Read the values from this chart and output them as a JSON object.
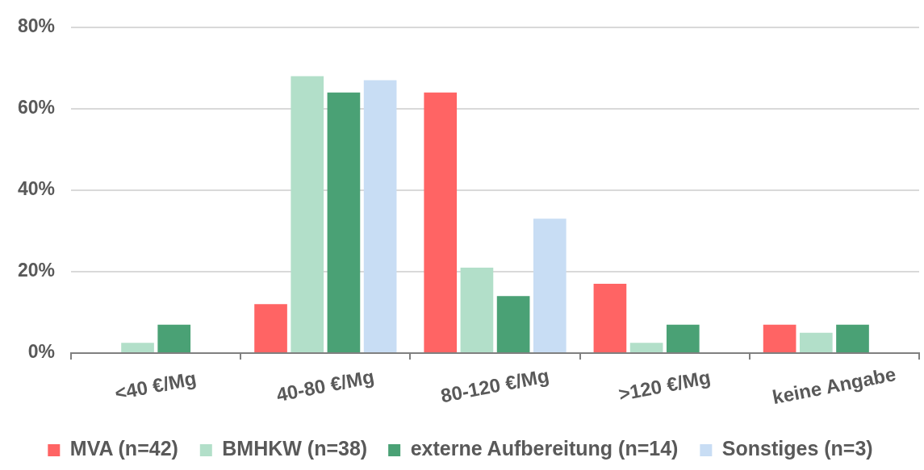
{
  "chart_data": {
    "type": "bar",
    "categories": [
      "<40 €/Mg",
      "40-80 €/Mg",
      "80-120 €/Mg",
      ">120 €/Mg",
      "keine Angabe"
    ],
    "series": [
      {
        "name": "MVA (n=42)",
        "color": "#ff6464",
        "values": [
          0,
          12,
          64,
          17,
          7
        ]
      },
      {
        "name": "BMHKW (n=38)",
        "color": "#b2dfc9",
        "values": [
          2.5,
          68,
          21,
          2.5,
          5
        ]
      },
      {
        "name": "externe Aufbereitung (n=14)",
        "color": "#4aa175",
        "values": [
          7,
          64,
          14,
          7,
          7
        ]
      },
      {
        "name": "Sonstiges (n=3)",
        "color": "#c8ddf4",
        "values": [
          0,
          67,
          33,
          0,
          0
        ]
      }
    ],
    "ylim": [
      0,
      80
    ],
    "yticks": [
      {
        "value": 0,
        "label": "0%"
      },
      {
        "value": 20,
        "label": "20%"
      },
      {
        "value": 40,
        "label": "40%"
      },
      {
        "value": 60,
        "label": "60%"
      },
      {
        "value": 80,
        "label": "80%"
      }
    ],
    "grid": "y",
    "legend": "bottom"
  }
}
